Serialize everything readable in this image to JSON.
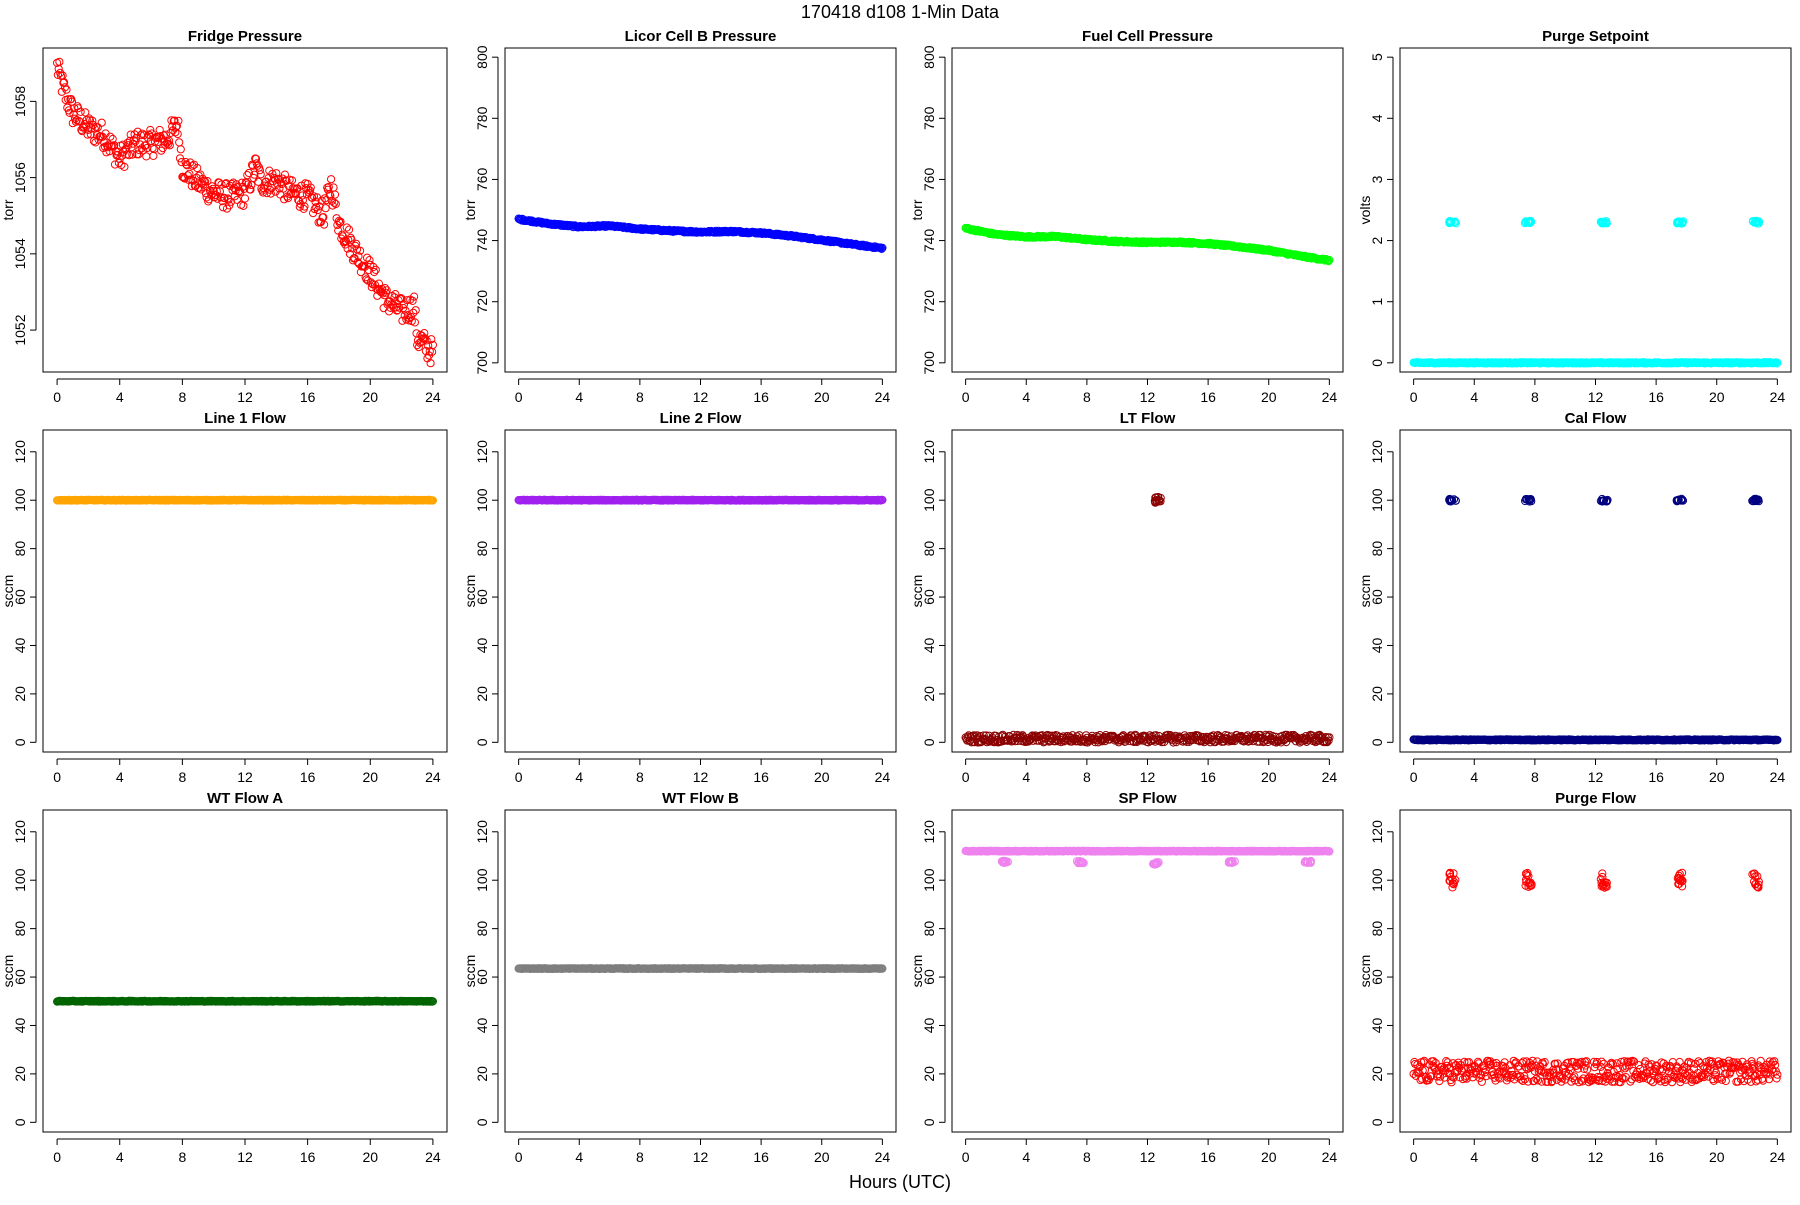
{
  "figure": {
    "title": "170418   d108   1-Min Data",
    "xlabel": "Hours (UTC)"
  },
  "chart_data": [
    {
      "type": "scatter",
      "title": "Fridge Pressure",
      "ylabel": "torr",
      "xlim": [
        0,
        24
      ],
      "xticks": [
        0,
        4,
        8,
        12,
        16,
        20,
        24
      ],
      "ylim": [
        1050.9,
        1059.4
      ],
      "yticks": [
        1052,
        1054,
        1056,
        1058
      ],
      "color": "#ff0000",
      "marker": "open-circle",
      "series": [
        {
          "x": [
            0,
            0.5,
            1,
            2,
            3,
            4,
            5,
            6,
            7,
            7.7,
            8,
            9,
            10,
            11,
            12,
            12.7,
            13,
            14,
            15,
            16,
            17,
            17.5,
            18,
            19,
            20,
            21,
            22,
            22.8,
            23,
            24
          ],
          "y": [
            1058.9,
            1058.2,
            1057.7,
            1057.3,
            1057.1,
            1056.5,
            1056.9,
            1056.9,
            1057.0,
            1057.4,
            1056.3,
            1055.9,
            1055.6,
            1055.5,
            1055.6,
            1056.3,
            1055.9,
            1055.9,
            1055.6,
            1055.5,
            1055.0,
            1055.8,
            1054.8,
            1054.1,
            1053.5,
            1052.8,
            1052.5,
            1052.6,
            1051.8,
            1051.4
          ]
        }
      ]
    },
    {
      "type": "scatter",
      "title": "Licor Cell B Pressure",
      "ylabel": "torr",
      "xlim": [
        0,
        24
      ],
      "xticks": [
        0,
        4,
        8,
        12,
        16,
        20,
        24
      ],
      "ylim": [
        697,
        803
      ],
      "yticks": [
        700,
        720,
        740,
        760,
        780,
        800
      ],
      "color": "#0000ff",
      "marker": "open-circle",
      "series": [
        {
          "x": [
            0,
            2,
            4,
            6,
            8,
            10,
            12,
            14,
            16,
            18,
            20,
            22,
            24
          ],
          "y": [
            747,
            745.5,
            744.5,
            744.8,
            743.8,
            743.2,
            742.8,
            743.0,
            742.5,
            741.5,
            740.2,
            738.8,
            737.5
          ]
        }
      ]
    },
    {
      "type": "scatter",
      "title": "Fuel Cell Pressure",
      "ylabel": "torr",
      "xlim": [
        0,
        24
      ],
      "xticks": [
        0,
        4,
        8,
        12,
        16,
        20,
        24
      ],
      "ylim": [
        697,
        803
      ],
      "yticks": [
        700,
        720,
        740,
        760,
        780,
        800
      ],
      "color": "#00ff00",
      "marker": "open-circle",
      "series": [
        {
          "x": [
            0,
            2,
            4,
            6,
            8,
            10,
            12,
            14,
            16,
            18,
            20,
            22,
            24
          ],
          "y": [
            744,
            742,
            741.2,
            741.3,
            740.3,
            739.7,
            739.4,
            739.5,
            739.0,
            738.0,
            736.8,
            735.0,
            733.5
          ]
        }
      ]
    },
    {
      "type": "scatter",
      "title": "Purge Setpoint",
      "ylabel": "volts",
      "xlim": [
        0,
        24
      ],
      "xticks": [
        0,
        4,
        8,
        12,
        16,
        20,
        24
      ],
      "ylim": [
        -0.15,
        5.15
      ],
      "yticks": [
        0,
        1,
        2,
        3,
        4,
        5
      ],
      "color": "#00ffff",
      "marker": "open-circle",
      "series": [
        {
          "x": [
            0,
            24
          ],
          "y": [
            0,
            0
          ]
        },
        {
          "x": [
            2.5,
            7.5,
            12.5,
            17.5,
            22.5
          ],
          "y": [
            2.3,
            2.3,
            2.3,
            2.3,
            2.3
          ]
        }
      ]
    },
    {
      "type": "scatter",
      "title": "Line 1 Flow",
      "ylabel": "sccm",
      "xlim": [
        0,
        24
      ],
      "xticks": [
        0,
        4,
        8,
        12,
        16,
        20,
        24
      ],
      "ylim": [
        -4,
        129
      ],
      "yticks": [
        0,
        20,
        40,
        60,
        80,
        100,
        120
      ],
      "color": "#ffa500",
      "marker": "open-circle",
      "series": [
        {
          "x": [
            0,
            24
          ],
          "y": [
            100,
            100
          ]
        }
      ]
    },
    {
      "type": "scatter",
      "title": "Line 2 Flow",
      "ylabel": "sccm",
      "xlim": [
        0,
        24
      ],
      "xticks": [
        0,
        4,
        8,
        12,
        16,
        20,
        24
      ],
      "ylim": [
        -4,
        129
      ],
      "yticks": [
        0,
        20,
        40,
        60,
        80,
        100,
        120
      ],
      "color": "#a020f0",
      "marker": "open-circle",
      "series": [
        {
          "x": [
            0,
            24
          ],
          "y": [
            100,
            100
          ]
        }
      ]
    },
    {
      "type": "scatter",
      "title": "LT Flow",
      "ylabel": "sccm",
      "xlim": [
        0,
        24
      ],
      "xticks": [
        0,
        4,
        8,
        12,
        16,
        20,
        24
      ],
      "ylim": [
        -4,
        129
      ],
      "yticks": [
        0,
        20,
        40,
        60,
        80,
        100,
        120
      ],
      "color": "#8b0000",
      "marker": "open-circle",
      "series": [
        {
          "x": [
            0,
            24
          ],
          "y": [
            1.5,
            1.5
          ]
        },
        {
          "x": [
            12.6
          ],
          "y": [
            100
          ]
        }
      ]
    },
    {
      "type": "scatter",
      "title": "Cal Flow",
      "ylabel": "sccm",
      "xlim": [
        0,
        24
      ],
      "xticks": [
        0,
        4,
        8,
        12,
        16,
        20,
        24
      ],
      "ylim": [
        -4,
        129
      ],
      "yticks": [
        0,
        20,
        40,
        60,
        80,
        100,
        120
      ],
      "color": "#000080",
      "marker": "open-circle",
      "series": [
        {
          "x": [
            0,
            24
          ],
          "y": [
            1,
            1
          ]
        },
        {
          "x": [
            2.5,
            7.5,
            12.5,
            17.5,
            22.5
          ],
          "y": [
            100,
            100,
            100,
            100,
            100
          ]
        }
      ]
    },
    {
      "type": "scatter",
      "title": "WT Flow A",
      "ylabel": "sccm",
      "xlim": [
        0,
        24
      ],
      "xticks": [
        0,
        4,
        8,
        12,
        16,
        20,
        24
      ],
      "ylim": [
        -4,
        129
      ],
      "yticks": [
        0,
        20,
        40,
        60,
        80,
        100,
        120
      ],
      "color": "#006400",
      "marker": "open-circle",
      "series": [
        {
          "x": [
            0,
            24
          ],
          "y": [
            50,
            50
          ]
        }
      ]
    },
    {
      "type": "scatter",
      "title": "WT Flow B",
      "ylabel": "sccm",
      "xlim": [
        0,
        24
      ],
      "xticks": [
        0,
        4,
        8,
        12,
        16,
        20,
        24
      ],
      "ylim": [
        -4,
        129
      ],
      "yticks": [
        0,
        20,
        40,
        60,
        80,
        100,
        120
      ],
      "color": "#7f7f7f",
      "marker": "open-circle",
      "series": [
        {
          "x": [
            0,
            24
          ],
          "y": [
            63.5,
            63.5
          ]
        }
      ]
    },
    {
      "type": "scatter",
      "title": "SP Flow",
      "ylabel": "sccm",
      "xlim": [
        0,
        24
      ],
      "xticks": [
        0,
        4,
        8,
        12,
        16,
        20,
        24
      ],
      "ylim": [
        -4,
        129
      ],
      "yticks": [
        0,
        20,
        40,
        60,
        80,
        100,
        120
      ],
      "color": "#ee82ee",
      "marker": "open-circle",
      "series": [
        {
          "x": [
            0,
            24
          ],
          "y": [
            112,
            112
          ]
        },
        {
          "x": [
            2.5,
            7.5,
            12.5,
            17.5,
            22.5
          ],
          "y": [
            107.5,
            107.5,
            107,
            107.5,
            107.5
          ]
        }
      ]
    },
    {
      "type": "scatter",
      "title": "Purge Flow",
      "ylabel": "sccm",
      "xlim": [
        0,
        24
      ],
      "xticks": [
        0,
        4,
        8,
        12,
        16,
        20,
        24
      ],
      "ylim": [
        -4,
        129
      ],
      "yticks": [
        0,
        20,
        40,
        60,
        80,
        100,
        120
      ],
      "color": "#ff0000",
      "marker": "open-circle",
      "series": [
        {
          "x": [
            0,
            24
          ],
          "y": [
            21,
            21
          ]
        },
        {
          "x": [
            2.5,
            7.5,
            12.5,
            17.5,
            22.5
          ],
          "y": [
            100,
            100,
            100,
            100,
            100
          ]
        }
      ]
    }
  ]
}
